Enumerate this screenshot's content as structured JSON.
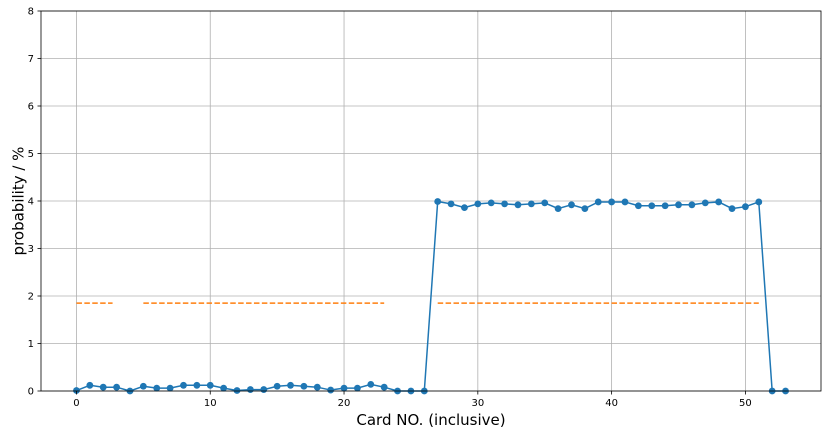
{
  "chart_data": {
    "type": "line",
    "title": "",
    "xlabel": "Card NO. (inclusive)",
    "ylabel": "probability / %",
    "xlim": [
      -2.65,
      55.65
    ],
    "ylim": [
      0,
      8
    ],
    "xticks": [
      0,
      10,
      20,
      30,
      40,
      50
    ],
    "yticks": [
      0,
      1,
      2,
      3,
      4,
      5,
      6,
      7,
      8
    ],
    "grid": true,
    "series": [
      {
        "style": "line-with-markers",
        "color": "#1f77b4",
        "x": [
          0,
          1,
          2,
          3,
          4,
          5,
          6,
          7,
          8,
          9,
          10,
          11,
          12,
          13,
          14,
          15,
          16,
          17,
          18,
          19,
          20,
          21,
          22,
          23,
          24,
          25,
          26,
          27,
          28,
          29,
          30,
          31,
          32,
          33,
          34,
          35,
          36,
          37,
          38,
          39,
          40,
          41,
          42,
          43,
          44,
          45,
          46,
          47,
          48,
          49,
          50,
          51,
          52,
          53
        ],
        "y": [
          0.01,
          0.12,
          0.08,
          0.08,
          0.0,
          0.1,
          0.06,
          0.06,
          0.12,
          0.12,
          0.12,
          0.06,
          0.01,
          0.03,
          0.03,
          0.1,
          0.12,
          0.1,
          0.08,
          0.02,
          0.06,
          0.06,
          0.14,
          0.08,
          0.0,
          0.0,
          0.0,
          3.99,
          3.94,
          3.86,
          3.94,
          3.96,
          3.94,
          3.92,
          3.94,
          3.96,
          3.84,
          3.92,
          3.84,
          3.98,
          3.98,
          3.98,
          3.9,
          3.9,
          3.9,
          3.92,
          3.92,
          3.96,
          3.98,
          3.84,
          3.88,
          3.98,
          0.0,
          0.0
        ]
      },
      {
        "style": "dashed",
        "color": "#ff7f0e",
        "segments": [
          {
            "x": [
              0,
              2.7
            ],
            "y": 1.85
          },
          {
            "x": [
              5,
              23
            ],
            "y": 1.85
          },
          {
            "x": [
              27,
              51
            ],
            "y": 1.85
          }
        ]
      }
    ]
  }
}
